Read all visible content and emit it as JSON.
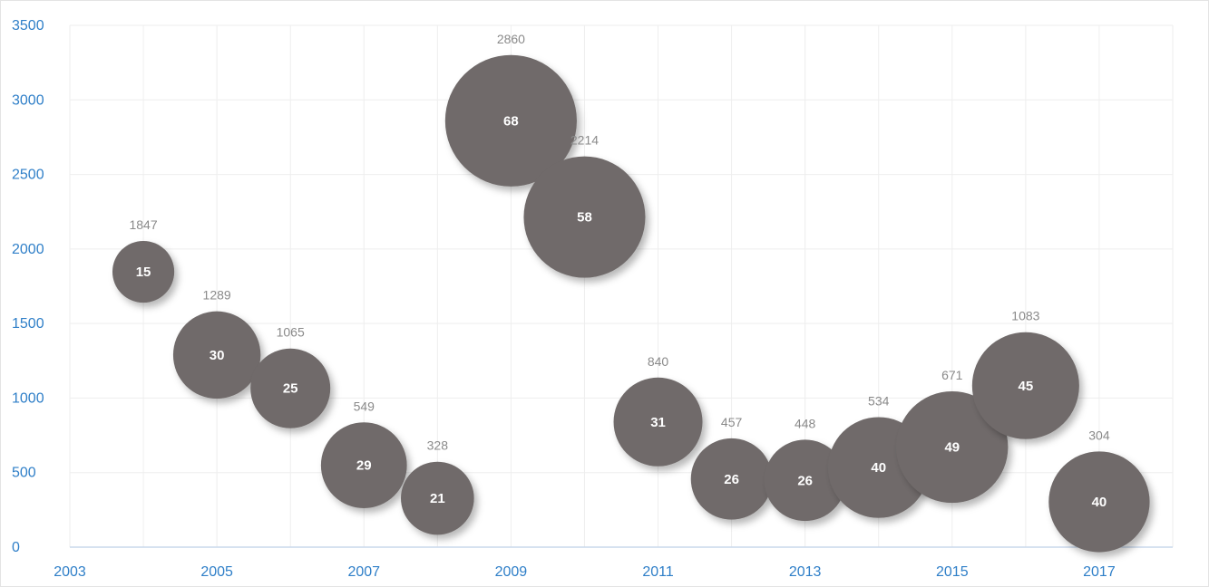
{
  "chart_data": {
    "type": "scatter",
    "variant": "bubble",
    "title": "",
    "xlabel": "",
    "ylabel": "",
    "xlim": [
      2003,
      2018
    ],
    "ylim": [
      0,
      3500
    ],
    "x_ticks": [
      2003,
      2005,
      2007,
      2009,
      2011,
      2013,
      2015,
      2017
    ],
    "y_ticks": [
      0,
      500,
      1000,
      1500,
      2000,
      2500,
      3000,
      3500
    ],
    "grid": true,
    "legend": "none",
    "colors": {
      "bubble": "#706b6a",
      "tick_text": "#2f7fc8",
      "value_text": "#8a8a8a",
      "grid": "#eeeeee",
      "axis": "#c9d8ec"
    },
    "points": [
      {
        "x": 2004,
        "y": 1847,
        "size": 15
      },
      {
        "x": 2005,
        "y": 1289,
        "size": 30
      },
      {
        "x": 2006,
        "y": 1065,
        "size": 25
      },
      {
        "x": 2007,
        "y": 549,
        "size": 29
      },
      {
        "x": 2008,
        "y": 328,
        "size": 21
      },
      {
        "x": 2009,
        "y": 2860,
        "size": 68
      },
      {
        "x": 2010,
        "y": 2214,
        "size": 58
      },
      {
        "x": 2011,
        "y": 840,
        "size": 31
      },
      {
        "x": 2012,
        "y": 457,
        "size": 26
      },
      {
        "x": 2013,
        "y": 448,
        "size": 26
      },
      {
        "x": 2014,
        "y": 534,
        "size": 40
      },
      {
        "x": 2015,
        "y": 671,
        "size": 49
      },
      {
        "x": 2016,
        "y": 1083,
        "size": 45
      },
      {
        "x": 2017,
        "y": 304,
        "size": 40
      }
    ]
  }
}
